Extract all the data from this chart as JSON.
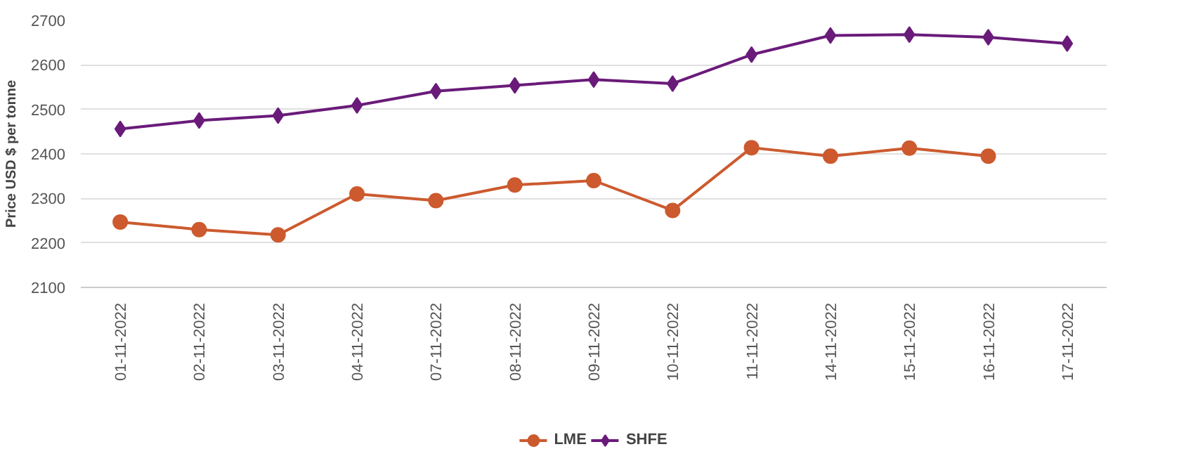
{
  "chart_data": {
    "type": "line",
    "ylabel": "Price USD $ per tonne",
    "categories": [
      "01-11-2022",
      "02-11-2022",
      "03-11-2022",
      "04-11-2022",
      "07-11-2022",
      "08-11-2022",
      "09-11-2022",
      "10-11-2022",
      "11-11-2022",
      "14-11-2022",
      "15-11-2022",
      "16-11-2022",
      "17-11-2022"
    ],
    "series": [
      {
        "name": "LME",
        "color": "#cc5a2e",
        "marker": "circle",
        "values": [
          2247,
          2230,
          2218,
          2310,
          2295,
          2330,
          2340,
          2273,
          2414,
          2395,
          2413,
          2395,
          null
        ]
      },
      {
        "name": "SHFE",
        "color": "#6a1b7a",
        "marker": "diamond",
        "values": [
          2456,
          2475,
          2486,
          2509,
          2541,
          2554,
          2567,
          2558,
          2623,
          2666,
          2668,
          2662,
          2648
        ]
      }
    ],
    "ylim": [
      2100,
      2700
    ],
    "yticks": [
      2100,
      2200,
      2300,
      2400,
      2500,
      2600,
      2700
    ],
    "grid": "y",
    "legend": "bottom",
    "line_style": "solid"
  }
}
